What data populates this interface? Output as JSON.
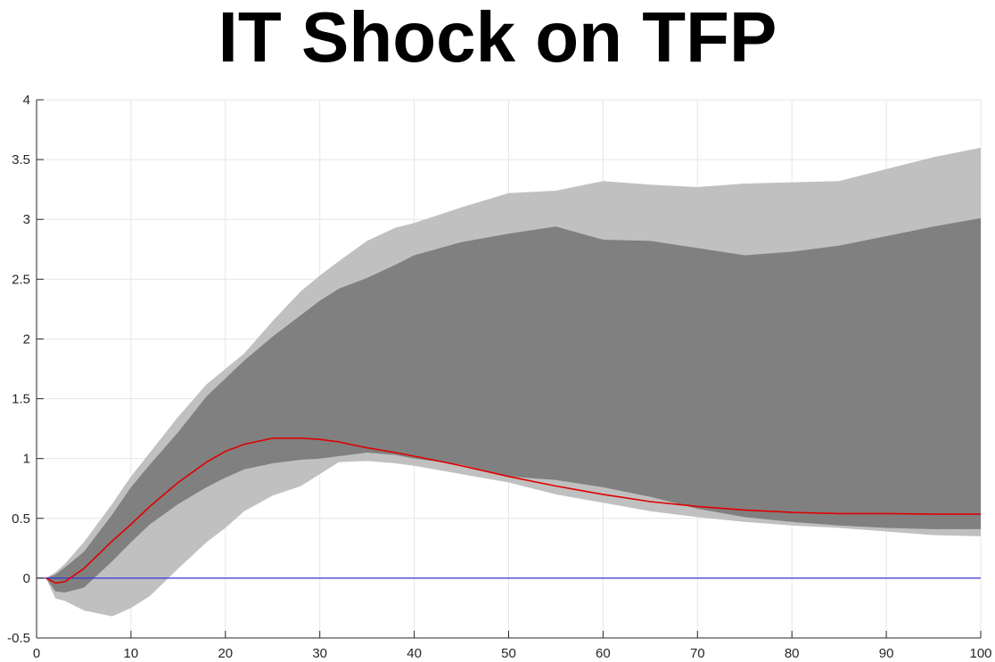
{
  "chart_data": {
    "type": "area",
    "title": "IT Shock on TFP",
    "xlabel": "",
    "ylabel": "",
    "xlim": [
      0,
      100
    ],
    "ylim": [
      -0.5,
      4
    ],
    "xticks": [
      0,
      10,
      20,
      30,
      40,
      50,
      60,
      70,
      80,
      90,
      100
    ],
    "yticks": [
      -0.5,
      0,
      0.5,
      1,
      1.5,
      2,
      2.5,
      3,
      3.5,
      4
    ],
    "grid": true,
    "legend": "none",
    "x": [
      1,
      2,
      3,
      5,
      8,
      10,
      12,
      15,
      18,
      20,
      22,
      25,
      28,
      30,
      32,
      35,
      38,
      40,
      45,
      50,
      55,
      60,
      65,
      70,
      75,
      80,
      85,
      90,
      95,
      100
    ],
    "series": [
      {
        "role": "outer-band-upper",
        "color": "#c0c0c0",
        "values": [
          0.0,
          0.05,
          0.12,
          0.3,
          0.62,
          0.85,
          1.05,
          1.35,
          1.62,
          1.75,
          1.88,
          2.15,
          2.4,
          2.53,
          2.65,
          2.82,
          2.93,
          2.97,
          3.1,
          3.22,
          3.24,
          3.32,
          3.29,
          3.27,
          3.3,
          3.31,
          3.32,
          3.42,
          3.52,
          3.6
        ]
      },
      {
        "role": "outer-band-lower",
        "color": "#c0c0c0",
        "values": [
          0.0,
          -0.17,
          -0.19,
          -0.27,
          -0.32,
          -0.25,
          -0.15,
          0.08,
          0.3,
          0.42,
          0.56,
          0.69,
          0.77,
          0.87,
          0.97,
          0.98,
          0.96,
          0.94,
          0.87,
          0.8,
          0.7,
          0.63,
          0.56,
          0.51,
          0.47,
          0.44,
          0.42,
          0.39,
          0.36,
          0.35
        ]
      },
      {
        "role": "inner-band-upper",
        "color": "#808080",
        "values": [
          0.0,
          0.03,
          0.09,
          0.22,
          0.53,
          0.76,
          0.95,
          1.22,
          1.52,
          1.67,
          1.82,
          2.02,
          2.2,
          2.32,
          2.42,
          2.51,
          2.62,
          2.7,
          2.81,
          2.88,
          2.94,
          2.83,
          2.82,
          2.76,
          2.7,
          2.73,
          2.78,
          2.86,
          2.94,
          3.01
        ]
      },
      {
        "role": "inner-band-lower",
        "color": "#808080",
        "values": [
          0.0,
          -0.11,
          -0.12,
          -0.08,
          0.14,
          0.3,
          0.45,
          0.62,
          0.76,
          0.84,
          0.91,
          0.96,
          0.99,
          1.0,
          1.02,
          1.05,
          1.03,
          1.0,
          0.95,
          0.85,
          0.82,
          0.76,
          0.68,
          0.58,
          0.51,
          0.47,
          0.44,
          0.42,
          0.41,
          0.41
        ]
      },
      {
        "role": "median",
        "color": "#e00000",
        "values": [
          0.0,
          -0.04,
          -0.03,
          0.08,
          0.31,
          0.45,
          0.6,
          0.8,
          0.97,
          1.06,
          1.12,
          1.17,
          1.17,
          1.16,
          1.14,
          1.09,
          1.05,
          1.02,
          0.94,
          0.85,
          0.77,
          0.7,
          0.64,
          0.6,
          0.57,
          0.55,
          0.54,
          0.54,
          0.535,
          0.535
        ]
      },
      {
        "role": "zero-line",
        "color": "#3333dd",
        "values": [
          0,
          0,
          0,
          0,
          0,
          0,
          0,
          0,
          0,
          0,
          0,
          0,
          0,
          0,
          0,
          0,
          0,
          0,
          0,
          0,
          0,
          0,
          0,
          0,
          0,
          0,
          0,
          0,
          0,
          0
        ]
      }
    ]
  }
}
